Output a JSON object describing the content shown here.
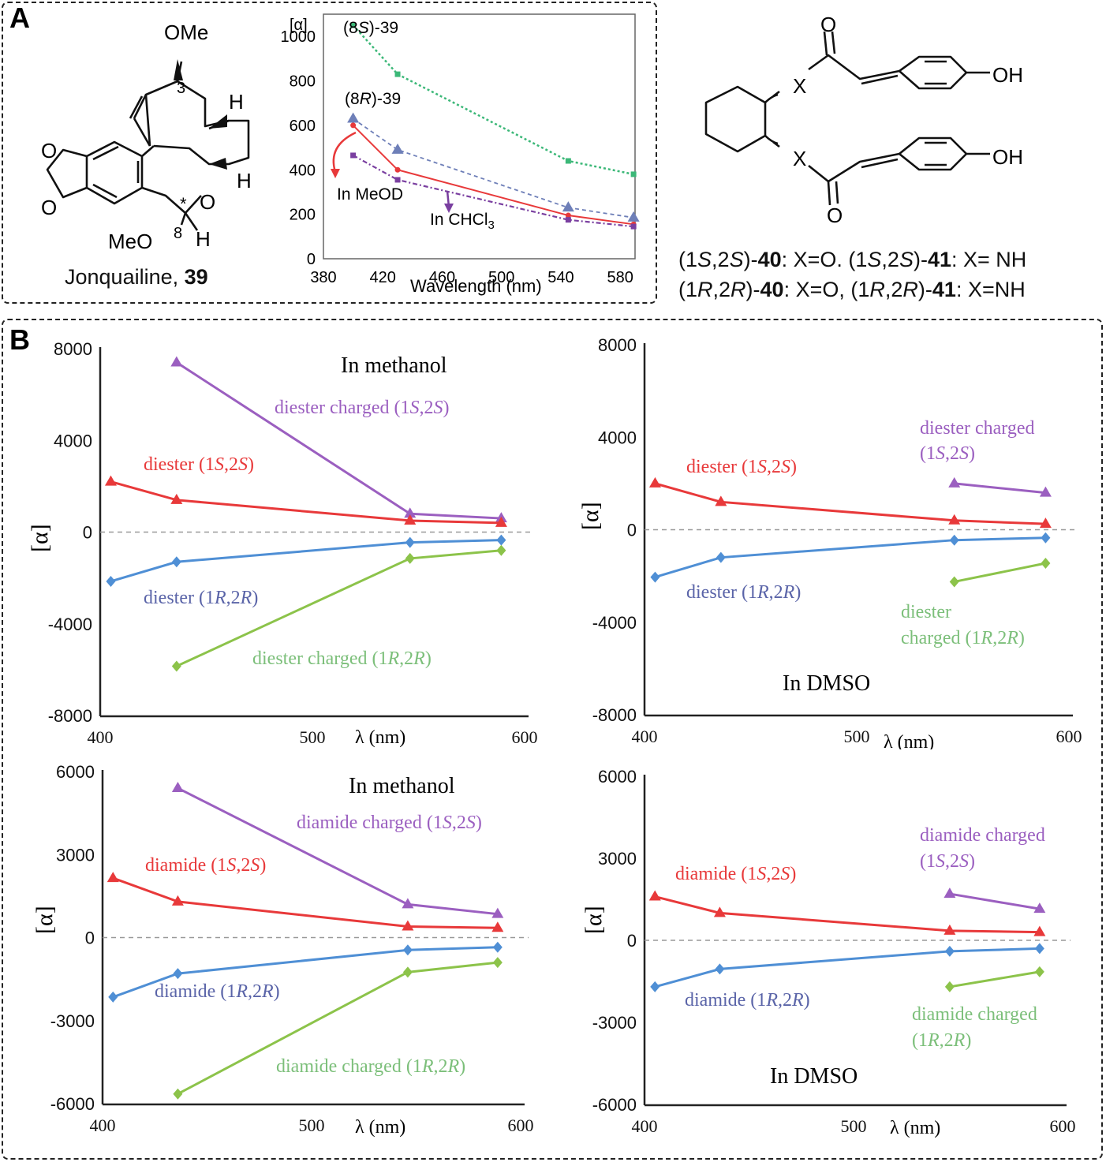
{
  "panels": {
    "a_label": "A",
    "b_label": "B"
  },
  "structure39": {
    "ome_top": "OMe",
    "num3": "3",
    "h1": "H",
    "h2": "H",
    "o_ring": "O",
    "o_a": "O",
    "o_b": "O",
    "star": "*",
    "num8": "8",
    "meo": "MeO",
    "h8": "H",
    "caption_text": "Jonquailine, ",
    "caption_num": "39"
  },
  "structure40": {
    "o_top": "O",
    "x_top": "X",
    "oh_top": "OH",
    "x_bot": "X",
    "oh_bot": "OH",
    "o_bot": "O"
  },
  "captions": {
    "line1": {
      "a": "(1",
      "b": "S",
      "c": ",2",
      "d": "S",
      "e": ")-",
      "f": "40",
      "g": ": X=O.  (1",
      "h": "S",
      "i": ",2",
      "j": "S",
      "k": ")-",
      "l": "41",
      "m": ": X= NH"
    },
    "line2": {
      "a": "(1",
      "b": "R",
      "c": ",2",
      "d": "R",
      "e": ")-",
      "f": "40",
      "g": ": X=O, (1",
      "h": "R",
      "i": ",2",
      "j": "R",
      "k": ")-",
      "l": "41",
      "m": ": X=NH"
    }
  },
  "colors": {
    "purple": "#9b5fc0",
    "red": "#e8393a",
    "blue": "#4f8fd5",
    "green": "#8cc34a",
    "green_a": "#3cb878",
    "purple_a": "#7a3fa0",
    "blue_a": "#6e7fb8",
    "blue_text": "#5a64a8",
    "green_text": "#7cbf7a"
  },
  "chart_data": [
    {
      "id": "A",
      "type": "line",
      "title": "",
      "xlabel": "Wavelength (nm)",
      "ylabel": "[α]",
      "xlim": [
        380,
        590
      ],
      "ylim": [
        0,
        1100
      ],
      "xticks": [
        380,
        420,
        460,
        500,
        540,
        580
      ],
      "yticks": [
        0,
        200,
        400,
        600,
        800,
        1000
      ],
      "annotations": [
        "(8S)-39",
        "(8R)-39",
        "In MeOD",
        "In CHCl3"
      ],
      "series": [
        {
          "name": "(8S)-39",
          "x": [
            400,
            430,
            545,
            589
          ],
          "y": [
            1050,
            830,
            440,
            380
          ]
        },
        {
          "name": "(8R)-39",
          "x": [
            400,
            430,
            545,
            589
          ],
          "y": [
            630,
            490,
            230,
            185
          ]
        },
        {
          "name": "In MeOD",
          "x": [
            400,
            430,
            545,
            589
          ],
          "y": [
            600,
            400,
            195,
            155
          ]
        },
        {
          "name": "In CHCl3",
          "x": [
            400,
            430,
            545,
            589
          ],
          "y": [
            465,
            355,
            175,
            145
          ]
        }
      ]
    },
    {
      "id": "B1",
      "type": "line",
      "title": "In methanol",
      "xlabel": "λ (nm)",
      "ylabel": "[α]",
      "xlim": [
        400,
        600
      ],
      "ylim": [
        -8000,
        8000
      ],
      "xticks": [
        400,
        500,
        600
      ],
      "yticks": [
        -8000,
        -4000,
        0,
        4000,
        8000
      ],
      "series": [
        {
          "name": "diester charged (1S,2S)",
          "x": [
            436,
            546,
            589
          ],
          "y": [
            7400,
            800,
            600
          ]
        },
        {
          "name": "diester (1S,2S)",
          "x": [
            405,
            436,
            546,
            589
          ],
          "y": [
            2200,
            1400,
            500,
            400
          ]
        },
        {
          "name": "diester (1R,2R)",
          "x": [
            405,
            436,
            546,
            589
          ],
          "y": [
            -2150,
            -1300,
            -450,
            -350
          ]
        },
        {
          "name": "diester charged (1R,2R)",
          "x": [
            436,
            546,
            589
          ],
          "y": [
            -5850,
            -1150,
            -800
          ]
        }
      ]
    },
    {
      "id": "B2",
      "type": "line",
      "title": "In DMSO",
      "xlabel": "λ (nm)",
      "ylabel": "[α]",
      "xlim": [
        400,
        600
      ],
      "ylim": [
        -8000,
        8000
      ],
      "xticks": [
        400,
        500,
        600
      ],
      "yticks": [
        -8000,
        -4000,
        0,
        4000,
        8000
      ],
      "series": [
        {
          "name": "diester charged (1S,2S)",
          "x": [
            546,
            589
          ],
          "y": [
            2000,
            1600
          ]
        },
        {
          "name": "diester (1S,2S)",
          "x": [
            405,
            436,
            546,
            589
          ],
          "y": [
            2000,
            1200,
            400,
            250
          ]
        },
        {
          "name": "diester (1R,2R)",
          "x": [
            405,
            436,
            546,
            589
          ],
          "y": [
            -2050,
            -1200,
            -450,
            -350
          ]
        },
        {
          "name": "diester charged (1R,2R)",
          "x": [
            546,
            589
          ],
          "y": [
            -2250,
            -1450
          ]
        }
      ]
    },
    {
      "id": "B3",
      "type": "line",
      "title": "In methanol",
      "xlabel": "λ (nm)",
      "ylabel": "[α]",
      "xlim": [
        400,
        600
      ],
      "ylim": [
        -6000,
        6000
      ],
      "xticks": [
        400,
        500,
        600
      ],
      "yticks": [
        -6000,
        -3000,
        0,
        3000,
        6000
      ],
      "series": [
        {
          "name": "diamide charged (1S,2S)",
          "x": [
            436,
            546,
            589
          ],
          "y": [
            5400,
            1200,
            850
          ]
        },
        {
          "name": "diamide (1S,2S)",
          "x": [
            405,
            436,
            546,
            589
          ],
          "y": [
            2150,
            1300,
            400,
            350
          ]
        },
        {
          "name": "diamide (1R,2R)",
          "x": [
            405,
            436,
            546,
            589
          ],
          "y": [
            -2150,
            -1300,
            -450,
            -350
          ]
        },
        {
          "name": "diamide charged (1R,2R)",
          "x": [
            436,
            546,
            589
          ],
          "y": [
            -5650,
            -1250,
            -900
          ]
        }
      ]
    },
    {
      "id": "B4",
      "type": "line",
      "title": "In DMSO",
      "xlabel": "λ (nm)",
      "ylabel": "[α]",
      "xlim": [
        400,
        600
      ],
      "ylim": [
        -6000,
        6000
      ],
      "xticks": [
        400,
        500,
        600
      ],
      "yticks": [
        -6000,
        -3000,
        0,
        3000,
        6000
      ],
      "series": [
        {
          "name": "diamide charged (1S,2S)",
          "x": [
            546,
            589
          ],
          "y": [
            1700,
            1150
          ]
        },
        {
          "name": "diamide (1S,2S)",
          "x": [
            405,
            436,
            546,
            589
          ],
          "y": [
            1600,
            1000,
            350,
            300
          ]
        },
        {
          "name": "diamide (1R,2R)",
          "x": [
            405,
            436,
            546,
            589
          ],
          "y": [
            -1700,
            -1050,
            -400,
            -300
          ]
        },
        {
          "name": "diamide charged (1R,2R)",
          "x": [
            546,
            589
          ],
          "y": [
            -1700,
            -1150
          ]
        }
      ]
    }
  ],
  "labels": {
    "A": {
      "ylab": "[α]",
      "xlab": "Wavelength (nm)",
      "s8_a": "(8",
      "s8_b": "S",
      "s8_c": ")-39",
      "r8_a": "(8",
      "r8_b": "R",
      "r8_c": ")-39",
      "meod": "In MeOD",
      "chcl3_a": "In CHCl",
      "chcl3_b": "3"
    },
    "B1": {
      "title": "In methanol",
      "xlab": "λ (nm)",
      "ylab": "[α]",
      "pS": "diester charged (1",
      "pS_S": "S",
      "pS_c": ",2",
      "pS_S2": "S",
      "pS_e": ")",
      "rS": "diester (1",
      "rS_S": "S",
      "rS_c": ",2",
      "rS_S2": "S",
      "rS_e": ")",
      "bR": "diester (1",
      "bR_R": "R",
      "bR_c": ",2",
      "bR_R2": "R",
      "bR_e": ")",
      "gR": "diester charged (1",
      "gR_R": "R",
      "gR_c": ",2",
      "gR_R2": "R",
      "gR_e": ")"
    },
    "B2": {
      "title": "In DMSO",
      "xlab": "λ (nm)",
      "ylab": "[α]",
      "p1": "diester charged",
      "p2": "(1",
      "p2_S": "S",
      "p2_c": ",2",
      "p2_S2": "S",
      "p2_e": ")",
      "rS": "diester (1",
      "rS_S": "S",
      "rS_c": ",2",
      "rS_S2": "S",
      "rS_e": ")",
      "bR": "diester (1",
      "bR_R": "R",
      "bR_c": ",2",
      "bR_R2": "R",
      "bR_e": ")",
      "g1": "diester",
      "g2": "charged (1",
      "g2_R": "R",
      "g2_c": ",2",
      "g2_R2": "R",
      "g2_e": ")"
    },
    "B3": {
      "title": "In methanol",
      "xlab": "λ (nm)",
      "ylab": "[α]",
      "pS": "diamide charged (1",
      "pS_S": "S",
      "pS_c": ",2",
      "pS_S2": "S",
      "pS_e": ")",
      "rS": "diamide (1",
      "rS_S": "S",
      "rS_c": ",2",
      "rS_S2": "S",
      "rS_e": ")",
      "bR": "diamide (1",
      "bR_R": "R",
      "bR_c": ",2",
      "bR_R2": "R",
      "bR_e": ")",
      "gR": "diamide charged (1",
      "gR_R": "R",
      "gR_c": ",2",
      "gR_R2": "R",
      "gR_e": ")"
    },
    "B4": {
      "title": "In DMSO",
      "xlab": "λ (nm)",
      "ylab": "[α]",
      "p1": "diamide charged",
      "p2": "(1",
      "p2_S": "S",
      "p2_c": ",2",
      "p2_S2": "S",
      "p2_e": ")",
      "rS": "diamide (1",
      "rS_S": "S",
      "rS_c": ",2",
      "rS_S2": "S",
      "rS_e": ")",
      "bR": "diamide (1",
      "bR_R": "R",
      "bR_c": ",2",
      "bR_R2": "R",
      "bR_e": ")",
      "g1": "diamide charged",
      "g2": "(1",
      "g2_R": "R",
      "g2_c": ",2",
      "g2_R2": "R",
      "g2_e": ")"
    }
  }
}
